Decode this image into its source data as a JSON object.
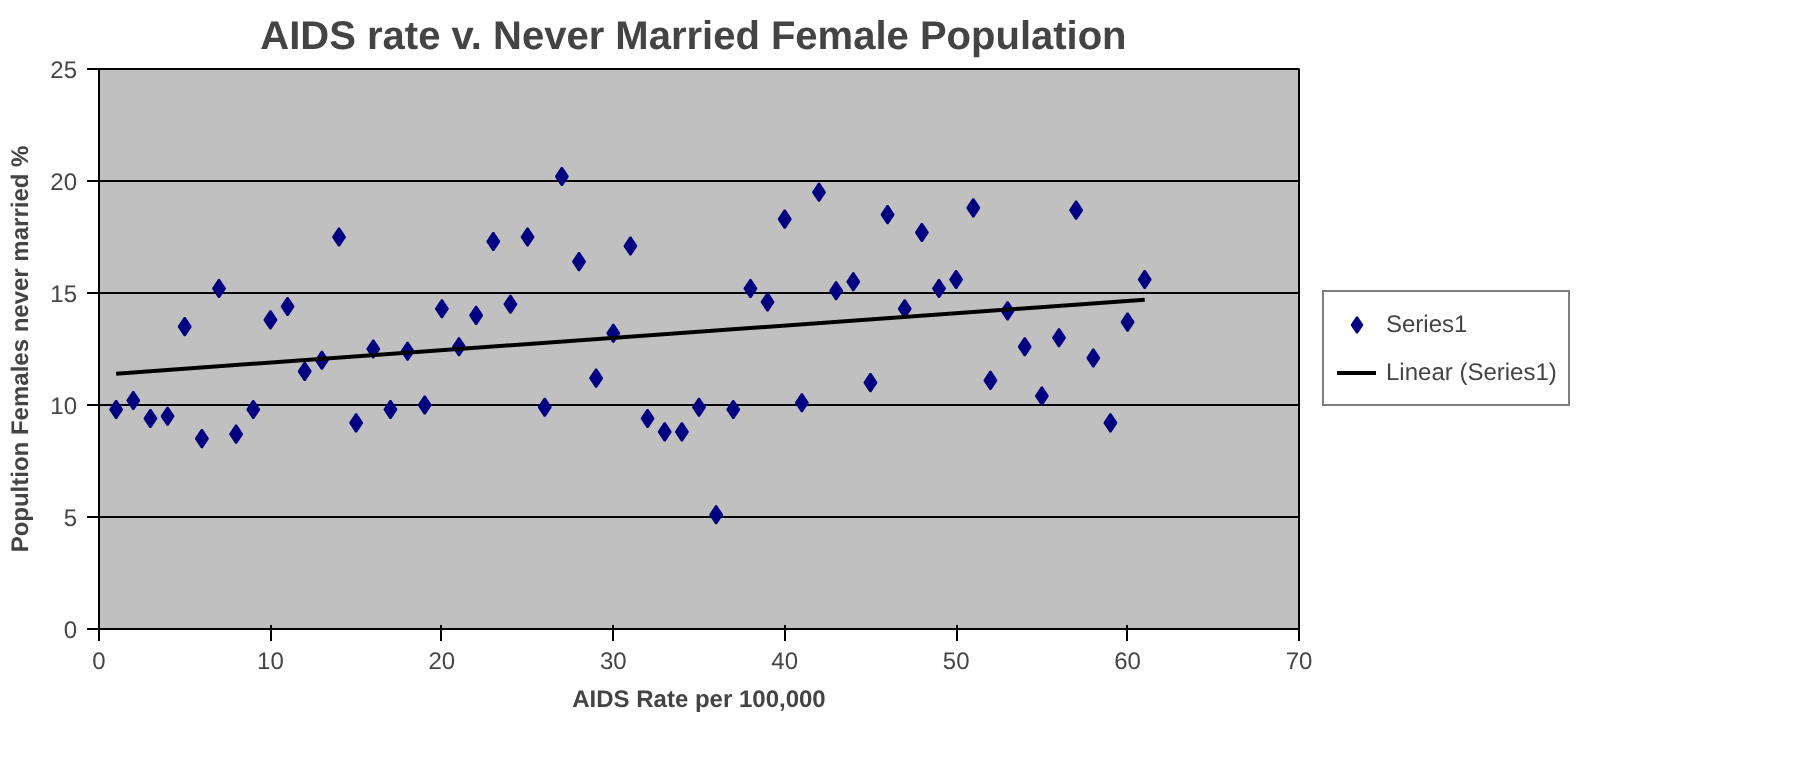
{
  "chart_data": {
    "type": "scatter",
    "title": "AIDS rate v.  Never Married Female Population",
    "xlabel": "AIDS Rate per 100,000",
    "ylabel": "Popultion Females never married %",
    "x": [
      1,
      2,
      3,
      4,
      5,
      6,
      7,
      8,
      9,
      10,
      11,
      12,
      13,
      14,
      15,
      16,
      17,
      18,
      19,
      20,
      21,
      22,
      23,
      24,
      25,
      26,
      27,
      28,
      29,
      30,
      31,
      32,
      33,
      34,
      35,
      36,
      37,
      38,
      39,
      40,
      41,
      42,
      43,
      44,
      45,
      46,
      47,
      48,
      49,
      50,
      51,
      52,
      53,
      54,
      55,
      56,
      57,
      58,
      59,
      60,
      61
    ],
    "series": [
      {
        "name": "Series1",
        "color": "#000080",
        "marker": "diamond",
        "values": [
          9.8,
          10.2,
          9.4,
          9.5,
          13.5,
          8.5,
          15.2,
          8.7,
          9.8,
          13.8,
          14.4,
          11.5,
          12.0,
          17.5,
          9.2,
          12.5,
          9.8,
          12.4,
          10.0,
          14.3,
          12.6,
          14.0,
          17.3,
          14.5,
          17.5,
          9.9,
          20.2,
          16.4,
          11.2,
          13.2,
          17.1,
          9.4,
          8.8,
          8.8,
          9.9,
          5.1,
          9.8,
          15.2,
          14.6,
          18.3,
          10.1,
          19.5,
          15.1,
          15.5,
          11.0,
          18.5,
          14.3,
          17.7,
          15.2,
          15.6,
          18.8,
          11.1,
          14.2,
          12.6,
          10.4,
          13.0,
          18.7,
          12.1,
          9.2,
          13.7,
          15.6
        ]
      },
      {
        "name": "Linear (Series1)",
        "type": "line",
        "marker": "none",
        "color": "#000000",
        "x": [
          1,
          61
        ],
        "values": [
          11.4,
          14.7
        ]
      }
    ],
    "xlim": [
      0,
      70
    ],
    "xticks": [
      0,
      10,
      20,
      30,
      40,
      50,
      60,
      70
    ],
    "ylim": [
      0,
      25
    ],
    "yticks": [
      0,
      5,
      10,
      15,
      20,
      25
    ],
    "grid": "y",
    "legend": "right"
  }
}
